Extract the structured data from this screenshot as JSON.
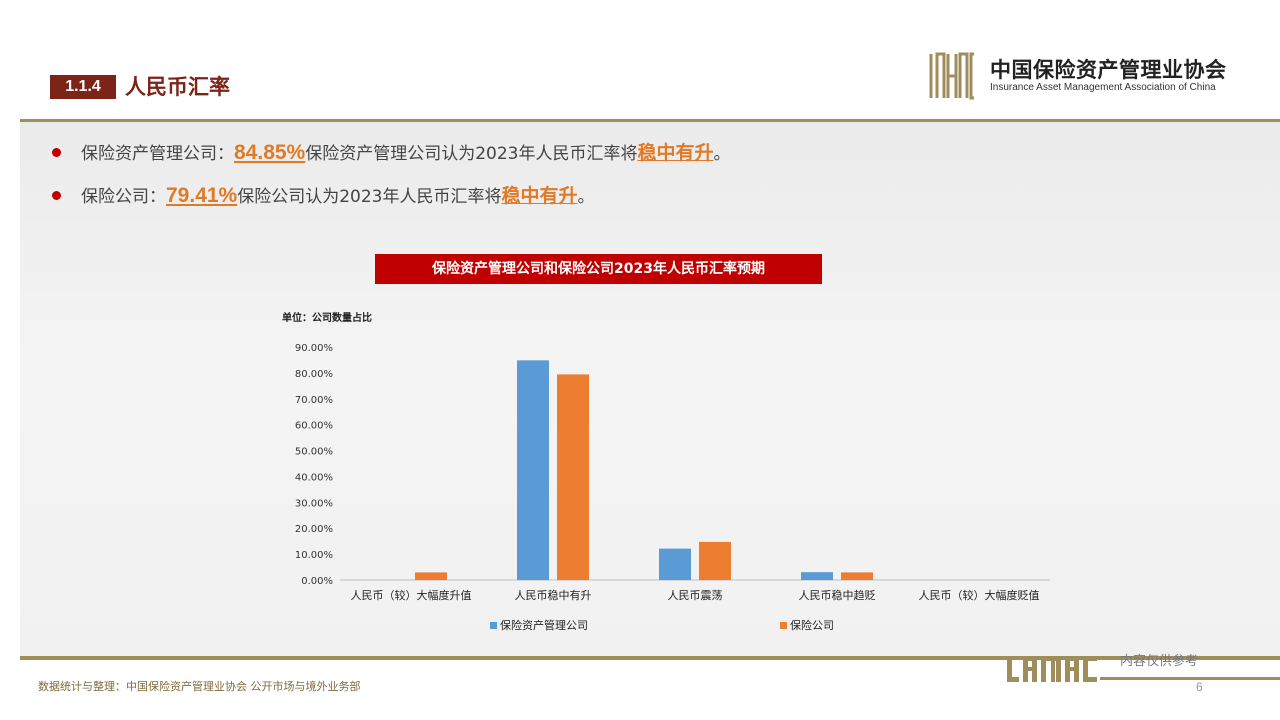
{
  "header": {
    "section_number": "1.1.4",
    "section_title": "人民币汇率",
    "logo_cn": "中国保险资产管理业协会",
    "logo_en": "Insurance Asset Management Association of China"
  },
  "bullets": [
    {
      "prefix": "保险资产管理公司：",
      "pct": "84.85%",
      "text": "保险资产管理公司认为2023年人民币汇率将",
      "highlight": "稳中有升",
      "suffix": "。"
    },
    {
      "prefix": "保险公司：",
      "pct": "79.41%",
      "text": "保险公司认为2023年人民币汇率将",
      "highlight": "稳中有升",
      "suffix": "。"
    }
  ],
  "chart_title": "保险资产管理公司和保险公司2023年人民币汇率预期",
  "chart_data": {
    "type": "bar",
    "unit_label": "单位：公司数量占比",
    "categories": [
      "人民币（较）大幅度升值",
      "人民币稳中有升",
      "人民币震荡",
      "人民币稳中趋贬",
      "人民币（较）大幅度贬值"
    ],
    "series": [
      {
        "name": "保险资产管理公司",
        "color": "#5b9bd5",
        "values": [
          0,
          84.85,
          12.12,
          3.03,
          0
        ]
      },
      {
        "name": "保险公司",
        "color": "#ed7d31",
        "values": [
          2.94,
          79.41,
          14.71,
          2.94,
          0
        ]
      }
    ],
    "yticks": [
      "0.00%",
      "10.00%",
      "20.00%",
      "30.00%",
      "40.00%",
      "50.00%",
      "60.00%",
      "70.00%",
      "80.00%",
      "90.00%"
    ],
    "ylim": [
      0,
      90
    ],
    "legend_position": "bottom",
    "grid": false
  },
  "footer": {
    "source": "数据统计与整理：中国保险资产管理业协会 公开市场与境外业务部",
    "note": "内容仅供参考",
    "page": "6"
  },
  "colors": {
    "brand": "#7b2417",
    "gold": "#a08d5c",
    "red": "#c00000",
    "accent": "#e07a27"
  }
}
